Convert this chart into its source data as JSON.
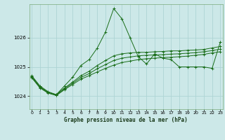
{
  "title": "Graphe pression niveau de la mer (hPa)",
  "bg_color": "#cce8e8",
  "grid_color": "#b0d4d4",
  "line_color": "#1a6e1a",
  "ylim": [
    1023.55,
    1027.15
  ],
  "yticks": [
    1024,
    1025,
    1026
  ],
  "xlim": [
    -0.3,
    23.3
  ],
  "xticks": [
    0,
    1,
    2,
    3,
    4,
    5,
    6,
    7,
    8,
    9,
    10,
    11,
    12,
    13,
    14,
    15,
    16,
    17,
    18,
    19,
    20,
    21,
    22,
    23
  ],
  "line1_y": [
    1024.7,
    1024.35,
    1024.15,
    1024.05,
    1024.35,
    1024.65,
    1025.05,
    1025.25,
    1025.65,
    1026.2,
    1027.0,
    1026.65,
    1026.0,
    1025.35,
    1025.1,
    1025.45,
    1025.3,
    1025.25,
    1025.0,
    1025.0,
    1025.0,
    1025.0,
    1024.95,
    1025.85
  ],
  "line2_y": [
    1024.65,
    1024.3,
    1024.12,
    1024.05,
    1024.28,
    1024.48,
    1024.7,
    1024.85,
    1025.05,
    1025.22,
    1025.38,
    1025.45,
    1025.48,
    1025.5,
    1025.5,
    1025.52,
    1025.53,
    1025.55,
    1025.55,
    1025.57,
    1025.58,
    1025.6,
    1025.65,
    1025.7
  ],
  "line3_y": [
    1024.63,
    1024.28,
    1024.1,
    1024.02,
    1024.22,
    1024.4,
    1024.58,
    1024.7,
    1024.83,
    1024.95,
    1025.06,
    1025.15,
    1025.2,
    1025.25,
    1025.28,
    1025.3,
    1025.32,
    1025.33,
    1025.35,
    1025.37,
    1025.4,
    1025.43,
    1025.48,
    1025.52
  ],
  "line4_y": [
    1024.68,
    1024.32,
    1024.13,
    1024.03,
    1024.25,
    1024.44,
    1024.64,
    1024.77,
    1024.94,
    1025.08,
    1025.22,
    1025.3,
    1025.34,
    1025.38,
    1025.4,
    1025.41,
    1025.42,
    1025.44,
    1025.45,
    1025.47,
    1025.49,
    1025.52,
    1025.56,
    1025.61
  ]
}
